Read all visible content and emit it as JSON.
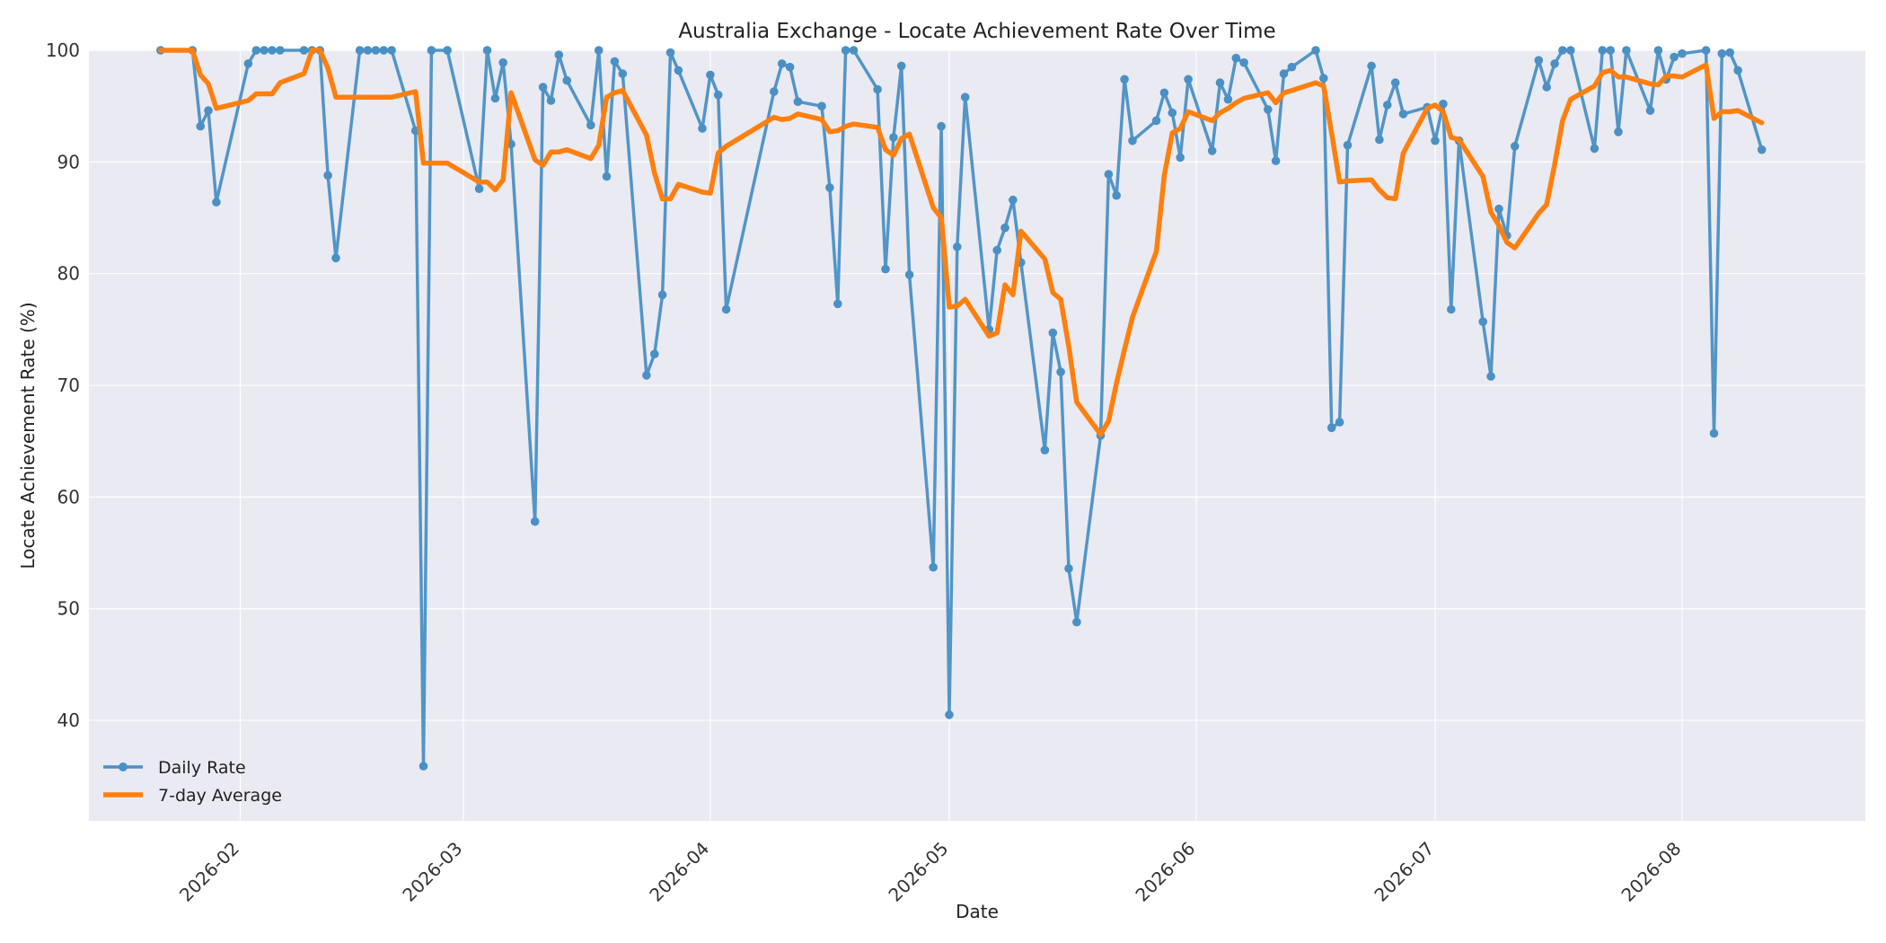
{
  "chart_data": {
    "type": "line",
    "title": "Australia Exchange - Locate Achievement Rate Over Time",
    "xlabel": "Date",
    "ylabel": "Locate Achievement Rate (%)",
    "ylim": [
      31,
      100
    ],
    "xlim": [
      "2026-01-13",
      "2026-08-24"
    ],
    "x_ticks": [
      "2026-02",
      "2026-03",
      "2026-04",
      "2026-05",
      "2026-06",
      "2026-07",
      "2026-08"
    ],
    "y_ticks": [
      40,
      50,
      60,
      70,
      80,
      90,
      100
    ],
    "grid": true,
    "legend": "lower-left",
    "series": [
      {
        "name": "Daily Rate",
        "color": "#4a90c4",
        "marker": "circle",
        "points": [
          [
            "2026-01-22",
            100
          ],
          [
            "2026-01-26",
            100
          ],
          [
            "2026-01-27",
            93.2
          ],
          [
            "2026-01-28",
            94.6
          ],
          [
            "2026-01-29",
            86.4
          ],
          [
            "2026-02-02",
            98.8
          ],
          [
            "2026-02-03",
            100
          ],
          [
            "2026-02-04",
            100
          ],
          [
            "2026-02-05",
            100
          ],
          [
            "2026-02-06",
            100
          ],
          [
            "2026-02-09",
            100
          ],
          [
            "2026-02-10",
            100
          ],
          [
            "2026-02-11",
            100
          ],
          [
            "2026-02-12",
            88.8
          ],
          [
            "2026-02-13",
            81.4
          ],
          [
            "2026-02-16",
            100
          ],
          [
            "2026-02-17",
            100
          ],
          [
            "2026-02-18",
            100
          ],
          [
            "2026-02-19",
            100
          ],
          [
            "2026-02-20",
            100
          ],
          [
            "2026-02-23",
            92.8
          ],
          [
            "2026-02-24",
            35.9
          ],
          [
            "2026-02-25",
            100
          ],
          [
            "2026-02-27",
            100
          ],
          [
            "2026-03-03",
            87.6
          ],
          [
            "2026-03-04",
            100
          ],
          [
            "2026-03-05",
            95.7
          ],
          [
            "2026-03-06",
            98.9
          ],
          [
            "2026-03-07",
            91.6
          ],
          [
            "2026-03-10",
            57.8
          ],
          [
            "2026-03-11",
            96.7
          ],
          [
            "2026-03-12",
            95.5
          ],
          [
            "2026-03-13",
            99.6
          ],
          [
            "2026-03-14",
            97.3
          ],
          [
            "2026-03-17",
            93.3
          ],
          [
            "2026-03-18",
            100
          ],
          [
            "2026-03-19",
            88.7
          ],
          [
            "2026-03-20",
            99.0
          ],
          [
            "2026-03-21",
            97.9
          ],
          [
            "2026-03-24",
            70.9
          ],
          [
            "2026-03-25",
            72.8
          ],
          [
            "2026-03-26",
            78.1
          ],
          [
            "2026-03-27",
            99.8
          ],
          [
            "2026-03-28",
            98.2
          ],
          [
            "2026-03-31",
            93.0
          ],
          [
            "2026-04-01",
            97.8
          ],
          [
            "2026-04-02",
            96.0
          ],
          [
            "2026-04-03",
            76.8
          ],
          [
            "2026-04-09",
            96.3
          ],
          [
            "2026-04-10",
            98.8
          ],
          [
            "2026-04-11",
            98.5
          ],
          [
            "2026-04-12",
            95.4
          ],
          [
            "2026-04-15",
            95.0
          ],
          [
            "2026-04-16",
            87.7
          ],
          [
            "2026-04-17",
            77.3
          ],
          [
            "2026-04-18",
            100
          ],
          [
            "2026-04-19",
            100
          ],
          [
            "2026-04-22",
            96.5
          ],
          [
            "2026-04-23",
            80.4
          ],
          [
            "2026-04-24",
            92.2
          ],
          [
            "2026-04-25",
            98.6
          ],
          [
            "2026-04-26",
            79.9
          ],
          [
            "2026-04-29",
            53.7
          ],
          [
            "2026-04-30",
            93.2
          ],
          [
            "2026-05-01",
            40.5
          ],
          [
            "2026-05-02",
            82.4
          ],
          [
            "2026-05-03",
            95.8
          ],
          [
            "2026-05-06",
            75.0
          ],
          [
            "2026-05-07",
            82.1
          ],
          [
            "2026-05-08",
            84.1
          ],
          [
            "2026-05-09",
            86.6
          ],
          [
            "2026-05-10",
            81.0
          ],
          [
            "2026-05-13",
            64.2
          ],
          [
            "2026-05-14",
            74.7
          ],
          [
            "2026-05-15",
            71.2
          ],
          [
            "2026-05-16",
            53.6
          ],
          [
            "2026-05-17",
            48.8
          ],
          [
            "2026-05-20",
            65.5
          ],
          [
            "2026-05-21",
            88.9
          ],
          [
            "2026-05-22",
            87.0
          ],
          [
            "2026-05-23",
            97.4
          ],
          [
            "2026-05-24",
            91.9
          ],
          [
            "2026-05-27",
            93.7
          ],
          [
            "2026-05-28",
            96.2
          ],
          [
            "2026-05-29",
            94.4
          ],
          [
            "2026-05-30",
            90.4
          ],
          [
            "2026-05-31",
            97.4
          ],
          [
            "2026-06-03",
            91.0
          ],
          [
            "2026-06-04",
            97.1
          ],
          [
            "2026-06-05",
            95.6
          ],
          [
            "2026-06-06",
            99.3
          ],
          [
            "2026-06-07",
            98.9
          ],
          [
            "2026-06-10",
            94.7
          ],
          [
            "2026-06-11",
            90.1
          ],
          [
            "2026-06-12",
            97.9
          ],
          [
            "2026-06-13",
            98.5
          ],
          [
            "2026-06-16",
            100
          ],
          [
            "2026-06-17",
            97.5
          ],
          [
            "2026-06-18",
            66.2
          ],
          [
            "2026-06-19",
            66.7
          ],
          [
            "2026-06-20",
            91.5
          ],
          [
            "2026-06-23",
            98.6
          ],
          [
            "2026-06-24",
            92.0
          ],
          [
            "2026-06-25",
            95.1
          ],
          [
            "2026-06-26",
            97.1
          ],
          [
            "2026-06-27",
            94.3
          ],
          [
            "2026-06-30",
            94.9
          ],
          [
            "2026-07-01",
            91.9
          ],
          [
            "2026-07-02",
            95.2
          ],
          [
            "2026-07-03",
            76.8
          ],
          [
            "2026-07-04",
            91.9
          ],
          [
            "2026-07-07",
            75.7
          ],
          [
            "2026-07-08",
            70.8
          ],
          [
            "2026-07-09",
            85.8
          ],
          [
            "2026-07-10",
            83.4
          ],
          [
            "2026-07-11",
            91.4
          ],
          [
            "2026-07-14",
            99.1
          ],
          [
            "2026-07-15",
            96.7
          ],
          [
            "2026-07-16",
            98.8
          ],
          [
            "2026-07-17",
            100
          ],
          [
            "2026-07-18",
            100
          ],
          [
            "2026-07-21",
            91.2
          ],
          [
            "2026-07-22",
            100
          ],
          [
            "2026-07-23",
            100
          ],
          [
            "2026-07-24",
            92.7
          ],
          [
            "2026-07-25",
            100
          ],
          [
            "2026-07-28",
            94.6
          ],
          [
            "2026-07-29",
            100
          ],
          [
            "2026-07-30",
            97.4
          ],
          [
            "2026-07-31",
            99.4
          ],
          [
            "2026-08-01",
            99.7
          ],
          [
            "2026-08-04",
            100
          ],
          [
            "2026-08-05",
            65.7
          ],
          [
            "2026-08-06",
            99.7
          ],
          [
            "2026-08-07",
            99.8
          ],
          [
            "2026-08-08",
            98.2
          ],
          [
            "2026-08-11",
            91.1
          ]
        ]
      },
      {
        "name": "7-day Average",
        "color": "#ff7f0e",
        "points": [
          [
            "2026-01-22",
            100
          ],
          [
            "2026-01-26",
            100
          ],
          [
            "2026-01-27",
            97.8
          ],
          [
            "2026-01-28",
            97.0
          ],
          [
            "2026-01-29",
            94.8
          ],
          [
            "2026-02-02",
            95.5
          ],
          [
            "2026-02-03",
            96.1
          ],
          [
            "2026-02-04",
            96.1
          ],
          [
            "2026-02-05",
            96.1
          ],
          [
            "2026-02-06",
            97.1
          ],
          [
            "2026-02-09",
            97.9
          ],
          [
            "2026-02-10",
            100
          ],
          [
            "2026-02-11",
            100
          ],
          [
            "2026-02-12",
            98.4
          ],
          [
            "2026-02-13",
            95.8
          ],
          [
            "2026-02-16",
            95.8
          ],
          [
            "2026-02-17",
            95.8
          ],
          [
            "2026-02-18",
            95.8
          ],
          [
            "2026-02-19",
            95.8
          ],
          [
            "2026-02-20",
            95.8
          ],
          [
            "2026-02-23",
            96.3
          ],
          [
            "2026-02-24",
            89.9
          ],
          [
            "2026-02-25",
            89.9
          ],
          [
            "2026-02-27",
            89.9
          ],
          [
            "2026-03-03",
            88.2
          ],
          [
            "2026-03-04",
            88.2
          ],
          [
            "2026-03-05",
            87.5
          ],
          [
            "2026-03-06",
            88.4
          ],
          [
            "2026-03-07",
            96.2
          ],
          [
            "2026-03-10",
            90.2
          ],
          [
            "2026-03-11",
            89.7
          ],
          [
            "2026-03-12",
            90.9
          ],
          [
            "2026-03-13",
            90.9
          ],
          [
            "2026-03-14",
            91.1
          ],
          [
            "2026-03-17",
            90.3
          ],
          [
            "2026-03-18",
            91.5
          ],
          [
            "2026-03-19",
            95.8
          ],
          [
            "2026-03-20",
            96.2
          ],
          [
            "2026-03-21",
            96.4
          ],
          [
            "2026-03-24",
            92.4
          ],
          [
            "2026-03-25",
            89.0
          ],
          [
            "2026-03-26",
            86.7
          ],
          [
            "2026-03-27",
            86.7
          ],
          [
            "2026-03-28",
            88.0
          ],
          [
            "2026-03-31",
            87.3
          ],
          [
            "2026-04-01",
            87.2
          ],
          [
            "2026-04-02",
            90.8
          ],
          [
            "2026-04-03",
            91.4
          ],
          [
            "2026-04-09",
            94.0
          ],
          [
            "2026-04-10",
            93.8
          ],
          [
            "2026-04-11",
            93.9
          ],
          [
            "2026-04-12",
            94.3
          ],
          [
            "2026-04-15",
            93.8
          ],
          [
            "2026-04-16",
            92.7
          ],
          [
            "2026-04-17",
            92.8
          ],
          [
            "2026-04-18",
            93.2
          ],
          [
            "2026-04-19",
            93.4
          ],
          [
            "2026-04-22",
            93.1
          ],
          [
            "2026-04-23",
            91.1
          ],
          [
            "2026-04-24",
            90.6
          ],
          [
            "2026-04-25",
            92.1
          ],
          [
            "2026-04-26",
            92.5
          ],
          [
            "2026-04-29",
            85.9
          ],
          [
            "2026-04-30",
            85.0
          ],
          [
            "2026-05-01",
            77.0
          ],
          [
            "2026-05-02",
            77.1
          ],
          [
            "2026-05-03",
            77.7
          ],
          [
            "2026-05-06",
            74.4
          ],
          [
            "2026-05-07",
            74.7
          ],
          [
            "2026-05-08",
            79.0
          ],
          [
            "2026-05-09",
            78.1
          ],
          [
            "2026-05-10",
            83.8
          ],
          [
            "2026-05-13",
            81.3
          ],
          [
            "2026-05-14",
            78.3
          ],
          [
            "2026-05-15",
            77.7
          ],
          [
            "2026-05-16",
            73.5
          ],
          [
            "2026-05-17",
            68.5
          ],
          [
            "2026-05-20",
            65.6
          ],
          [
            "2026-05-21",
            66.8
          ],
          [
            "2026-05-22",
            70.2
          ],
          [
            "2026-05-23",
            73.2
          ],
          [
            "2026-05-24",
            76.1
          ],
          [
            "2026-05-27",
            82.0
          ],
          [
            "2026-05-28",
            88.8
          ],
          [
            "2026-05-29",
            92.6
          ],
          [
            "2026-05-30",
            93.0
          ],
          [
            "2026-05-31",
            94.5
          ],
          [
            "2026-06-03",
            93.7
          ],
          [
            "2026-06-04",
            94.4
          ],
          [
            "2026-06-05",
            94.8
          ],
          [
            "2026-06-06",
            95.3
          ],
          [
            "2026-06-07",
            95.7
          ],
          [
            "2026-06-10",
            96.2
          ],
          [
            "2026-06-11",
            95.3
          ],
          [
            "2026-06-12",
            96.2
          ],
          [
            "2026-06-13",
            96.4
          ],
          [
            "2026-06-16",
            97.1
          ],
          [
            "2026-06-17",
            96.8
          ],
          [
            "2026-06-18",
            92.6
          ],
          [
            "2026-06-19",
            88.2
          ],
          [
            "2026-06-20",
            88.3
          ],
          [
            "2026-06-23",
            88.4
          ],
          [
            "2026-06-24",
            87.5
          ],
          [
            "2026-06-25",
            86.8
          ],
          [
            "2026-06-26",
            86.7
          ],
          [
            "2026-06-27",
            90.8
          ],
          [
            "2026-06-30",
            94.8
          ],
          [
            "2026-07-01",
            95.1
          ],
          [
            "2026-07-02",
            94.5
          ],
          [
            "2026-07-03",
            92.2
          ],
          [
            "2026-07-04",
            92.0
          ],
          [
            "2026-07-07",
            88.7
          ],
          [
            "2026-07-08",
            85.5
          ],
          [
            "2026-07-09",
            84.3
          ],
          [
            "2026-07-10",
            82.8
          ],
          [
            "2026-07-11",
            82.3
          ],
          [
            "2026-07-14",
            85.4
          ],
          [
            "2026-07-15",
            86.2
          ],
          [
            "2026-07-16",
            89.8
          ],
          [
            "2026-07-17",
            93.7
          ],
          [
            "2026-07-18",
            95.6
          ],
          [
            "2026-07-21",
            96.8
          ],
          [
            "2026-07-22",
            98.0
          ],
          [
            "2026-07-23",
            98.2
          ],
          [
            "2026-07-24",
            97.6
          ],
          [
            "2026-07-25",
            97.6
          ],
          [
            "2026-07-28",
            97.0
          ],
          [
            "2026-07-29",
            96.9
          ],
          [
            "2026-07-30",
            97.7
          ],
          [
            "2026-07-31",
            97.7
          ],
          [
            "2026-08-01",
            97.6
          ],
          [
            "2026-08-04",
            98.7
          ],
          [
            "2026-08-05",
            93.9
          ],
          [
            "2026-08-06",
            94.5
          ],
          [
            "2026-08-07",
            94.5
          ],
          [
            "2026-08-08",
            94.6
          ],
          [
            "2026-08-11",
            93.5
          ]
        ]
      }
    ]
  }
}
